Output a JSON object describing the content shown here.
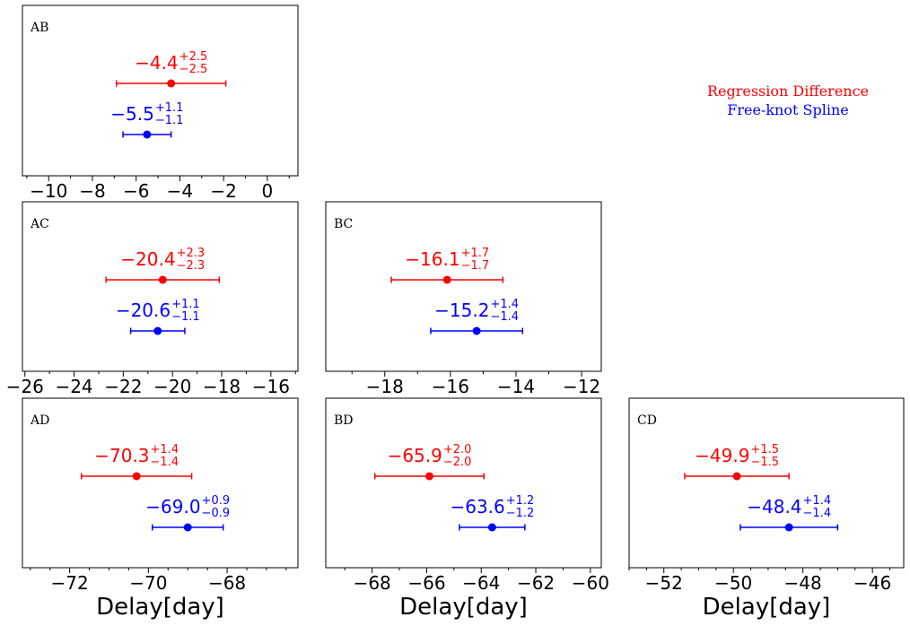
{
  "legend": {
    "regression": {
      "label": "Regression Difference",
      "color": "#ff0000"
    },
    "spline": {
      "label": "Free-knot Spline",
      "color": "#0000ff"
    }
  },
  "chart_data": [
    {
      "type": "errorbar",
      "panel_label": "AB",
      "xlim": [
        -11.2,
        1.4
      ],
      "xticks": [
        -10,
        -8,
        -6,
        -4,
        -2,
        0
      ],
      "xticks_minor_step": 1,
      "xlabel": "",
      "series": [
        {
          "name": "Regression Difference",
          "color": "#ff0000",
          "value": -4.4,
          "err_plus": 2.5,
          "err_minus": 2.5,
          "label_main": "−4.4",
          "label_plus": "+2.5",
          "label_minus": "−2.5"
        },
        {
          "name": "Free-knot Spline",
          "color": "#0000ff",
          "value": -5.5,
          "err_plus": 1.1,
          "err_minus": 1.1,
          "label_main": "−5.5",
          "label_plus": "+1.1",
          "label_minus": "−1.1"
        }
      ]
    },
    {
      "type": "errorbar",
      "panel_label": "AC",
      "xlim": [
        -26.1,
        -14.9
      ],
      "xticks": [
        -26,
        -24,
        -22,
        -20,
        -18,
        -16
      ],
      "xticks_minor_step": 1,
      "xlabel": "",
      "series": [
        {
          "name": "Regression Difference",
          "color": "#ff0000",
          "value": -20.4,
          "err_plus": 2.3,
          "err_minus": 2.3,
          "label_main": "−20.4",
          "label_plus": "+2.3",
          "label_minus": "−2.3"
        },
        {
          "name": "Free-knot Spline",
          "color": "#0000ff",
          "value": -20.6,
          "err_plus": 1.1,
          "err_minus": 1.1,
          "label_main": "−20.6",
          "label_plus": "+1.1",
          "label_minus": "−1.1"
        }
      ]
    },
    {
      "type": "errorbar",
      "panel_label": "BC",
      "xlim": [
        -19.8,
        -11.4
      ],
      "xticks": [
        -18,
        -16,
        -14,
        -12
      ],
      "xticks_minor_step": 1,
      "xlabel": "",
      "series": [
        {
          "name": "Regression Difference",
          "color": "#ff0000",
          "value": -16.1,
          "err_plus": 1.7,
          "err_minus": 1.7,
          "label_main": "−16.1",
          "label_plus": "+1.7",
          "label_minus": "−1.7"
        },
        {
          "name": "Free-knot Spline",
          "color": "#0000ff",
          "value": -15.2,
          "err_plus": 1.4,
          "err_minus": 1.4,
          "label_main": "−15.2",
          "label_plus": "+1.4",
          "label_minus": "−1.4"
        }
      ]
    },
    {
      "type": "errorbar",
      "panel_label": "AD",
      "xlim": [
        -73.2,
        -66.2
      ],
      "xticks": [
        -72,
        -70,
        -68
      ],
      "xticks_minor_step": 0.5,
      "xlabel": "Delay[day]",
      "series": [
        {
          "name": "Regression Difference",
          "color": "#ff0000",
          "value": -70.3,
          "err_plus": 1.4,
          "err_minus": 1.4,
          "label_main": "−70.3",
          "label_plus": "+1.4",
          "label_minus": "−1.4"
        },
        {
          "name": "Free-knot Spline",
          "color": "#0000ff",
          "value": -69.0,
          "err_plus": 0.9,
          "err_minus": 0.9,
          "label_main": "−69.0",
          "label_plus": "+0.9",
          "label_minus": "−0.9"
        }
      ]
    },
    {
      "type": "errorbar",
      "panel_label": "BD",
      "xlim": [
        -69.7,
        -59.6
      ],
      "xticks": [
        -68,
        -66,
        -64,
        -62,
        -60
      ],
      "xticks_minor_step": 1,
      "xlabel": "Delay[day]",
      "series": [
        {
          "name": "Regression Difference",
          "color": "#ff0000",
          "value": -65.9,
          "err_plus": 2.0,
          "err_minus": 2.0,
          "label_main": "−65.9",
          "label_plus": "+2.0",
          "label_minus": "−2.0"
        },
        {
          "name": "Free-knot Spline",
          "color": "#0000ff",
          "value": -63.6,
          "err_plus": 1.2,
          "err_minus": 1.2,
          "label_main": "−63.6",
          "label_plus": "+1.2",
          "label_minus": "−1.2"
        }
      ]
    },
    {
      "type": "errorbar",
      "panel_label": "CD",
      "xlim": [
        -53.0,
        -45.1
      ],
      "xticks": [
        -52,
        -50,
        -48,
        -46
      ],
      "xticks_minor_step": 0.5,
      "xlabel": "Delay[day]",
      "series": [
        {
          "name": "Regression Difference",
          "color": "#ff0000",
          "value": -49.9,
          "err_plus": 1.5,
          "err_minus": 1.5,
          "label_main": "−49.9",
          "label_plus": "+1.5",
          "label_minus": "−1.5"
        },
        {
          "name": "Free-knot Spline",
          "color": "#0000ff",
          "value": -48.4,
          "err_plus": 1.4,
          "err_minus": 1.4,
          "label_main": "−48.4",
          "label_plus": "+1.4",
          "label_minus": "−1.4"
        }
      ]
    }
  ]
}
